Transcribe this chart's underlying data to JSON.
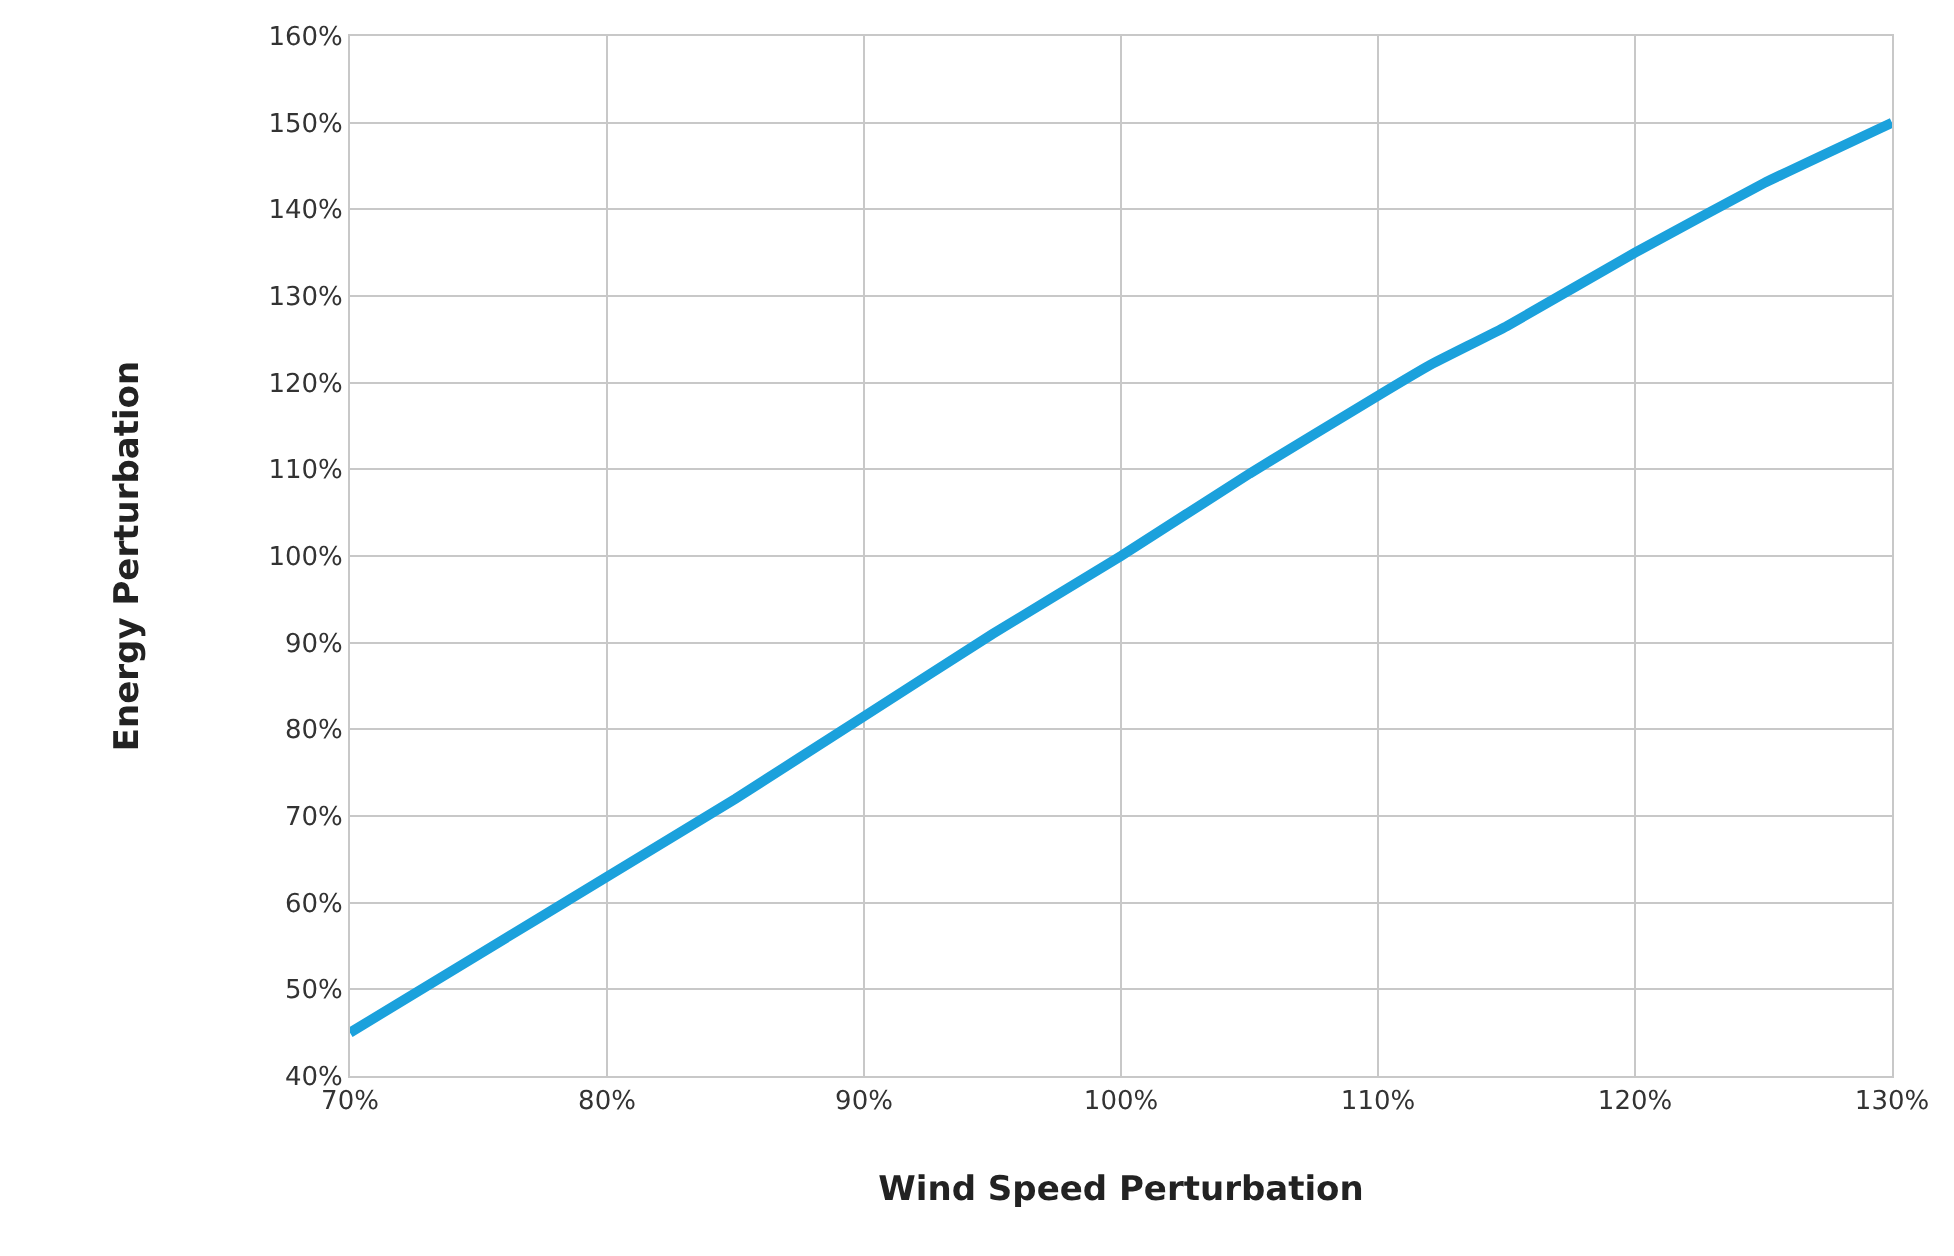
{
  "chart_data": {
    "type": "line",
    "xlabel": "Wind Speed Perturbation",
    "ylabel": "Energy Perturbation",
    "x": [
      70,
      75,
      80,
      85,
      90,
      95,
      100,
      105,
      110,
      112,
      115,
      120,
      125,
      130
    ],
    "series": [
      {
        "color": "#1ba1dc",
        "values": [
          45,
          54,
          63,
          72,
          81.5,
          91,
          100,
          109.5,
          118.5,
          122,
          126.5,
          135,
          143,
          150
        ]
      }
    ],
    "xlim": [
      70,
      130
    ],
    "xticks": [
      {
        "value": 70,
        "label": "70%"
      },
      {
        "value": 80,
        "label": "80%"
      },
      {
        "value": 90,
        "label": "90%"
      },
      {
        "value": 100,
        "label": "100%"
      },
      {
        "value": 110,
        "label": "110%"
      },
      {
        "value": 120,
        "label": "120%"
      },
      {
        "value": 130,
        "label": "130%"
      }
    ],
    "ylim": [
      40,
      160
    ],
    "yticks": [
      {
        "value": 40,
        "label": "40%"
      },
      {
        "value": 50,
        "label": "50%"
      },
      {
        "value": 60,
        "label": "60%"
      },
      {
        "value": 70,
        "label": "70%"
      },
      {
        "value": 80,
        "label": "80%"
      },
      {
        "value": 90,
        "label": "90%"
      },
      {
        "value": 100,
        "label": "100%"
      },
      {
        "value": 110,
        "label": "110%"
      },
      {
        "value": 120,
        "label": "120%"
      },
      {
        "value": 130,
        "label": "130%"
      },
      {
        "value": 140,
        "label": "140%"
      },
      {
        "value": 150,
        "label": "150%"
      },
      {
        "value": 160,
        "label": "160%"
      }
    ],
    "grid": true,
    "marker": "none",
    "line_style": "solid"
  }
}
